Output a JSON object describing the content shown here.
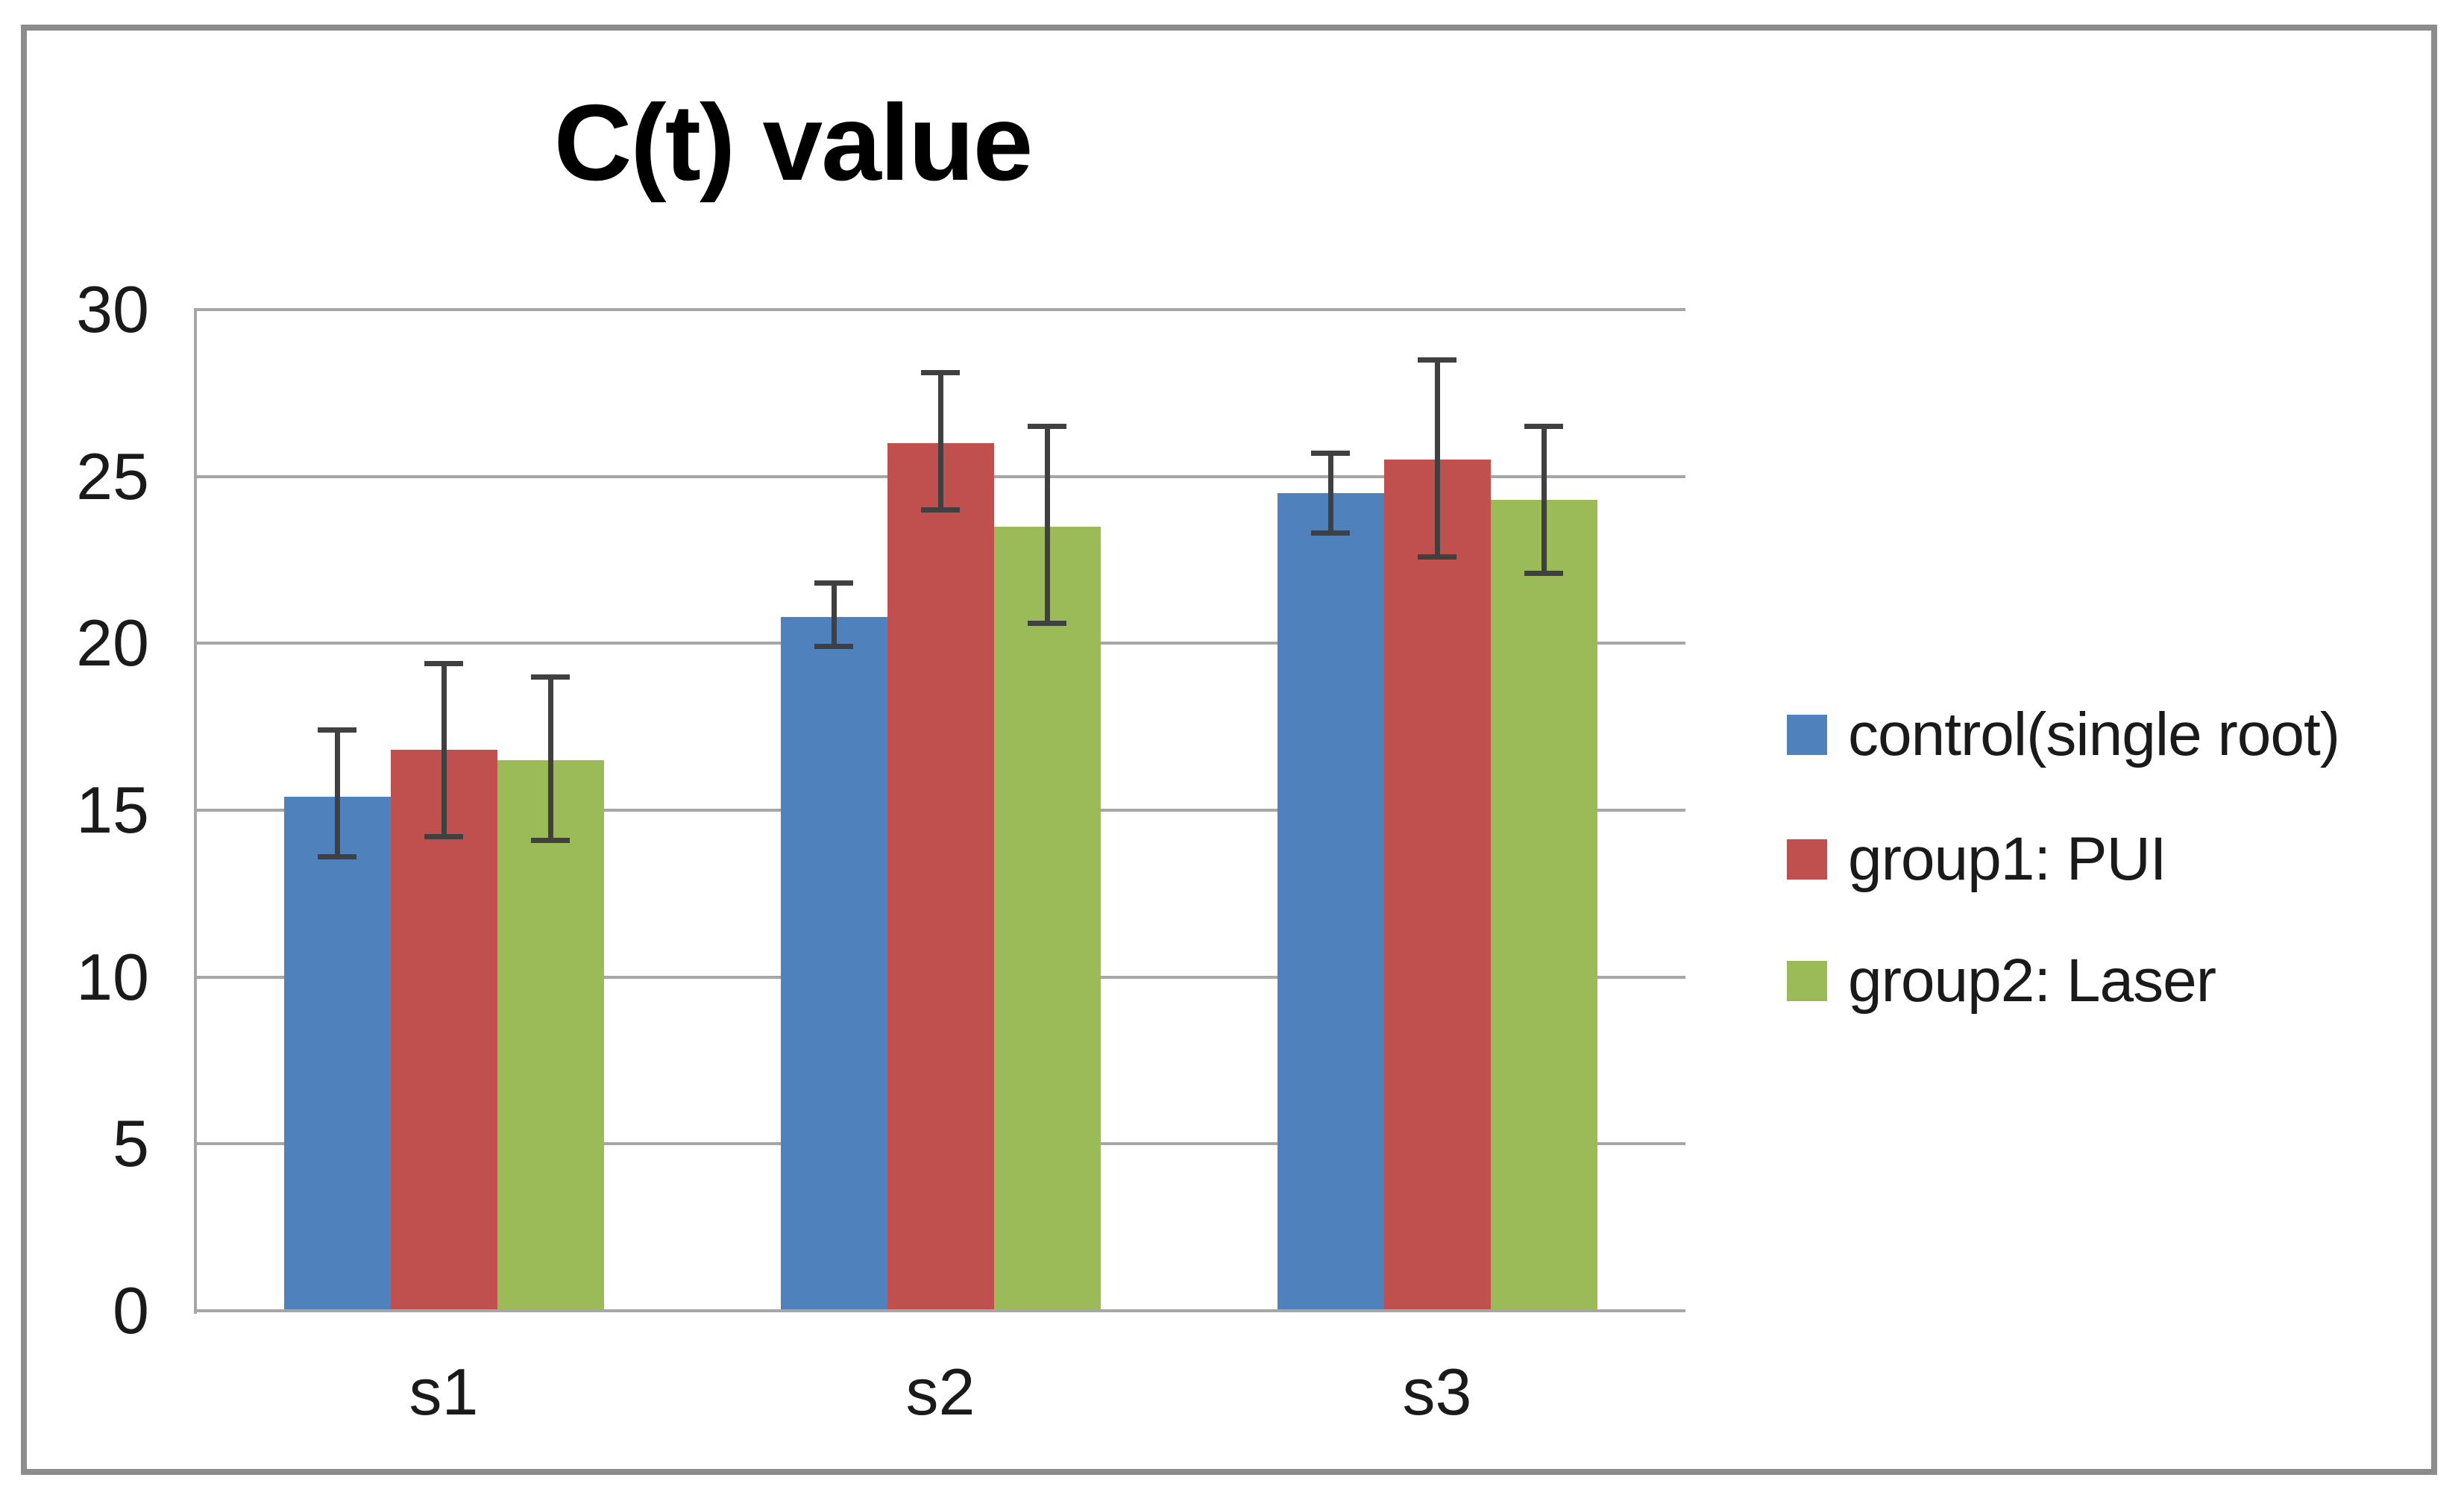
{
  "chart_data": {
    "type": "bar",
    "title": "C(t) value",
    "categories": [
      "s1",
      "s2",
      "s3"
    ],
    "series": [
      {
        "name": "control(single root)",
        "color": "#4F81BD",
        "values": [
          15.4,
          20.8,
          24.5
        ],
        "error_low": [
          13.6,
          19.9,
          23.3
        ],
        "error_high": [
          17.4,
          21.8,
          25.7
        ]
      },
      {
        "name": "group1: PUI",
        "color": "#C0504D",
        "values": [
          16.8,
          26.0,
          25.5
        ],
        "error_low": [
          14.2,
          24.0,
          22.6
        ],
        "error_high": [
          19.4,
          28.1,
          28.5
        ]
      },
      {
        "name": "group2: Laser",
        "color": "#9BBB59",
        "values": [
          16.5,
          23.5,
          24.3
        ],
        "error_low": [
          14.1,
          20.6,
          22.1
        ],
        "error_high": [
          19.0,
          26.5,
          26.5
        ]
      }
    ],
    "xlabel": "",
    "ylabel": "",
    "ylim": [
      0,
      30
    ],
    "ytick_step": 5,
    "ytick_labels": [
      "0",
      "5",
      "10",
      "15",
      "20",
      "25",
      "30"
    ],
    "grid": true,
    "legend_position": "right",
    "error_bar_color": "#404040",
    "gridline_color": "#A6A6A6",
    "frame_border_color": "#8C8C8C"
  }
}
